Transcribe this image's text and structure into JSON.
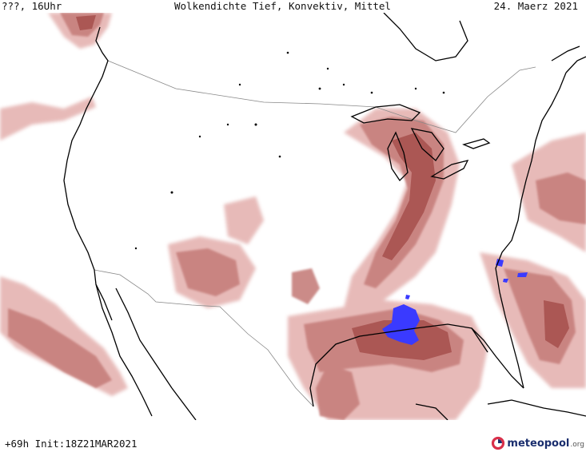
{
  "header": {
    "left": "???, 16Uhr",
    "center": "Wolkendichte  Tief, Konvektiv, Mittel",
    "right": "24. Maerz 2021"
  },
  "footer": {
    "run_info": "+69h Init:18Z21MAR2021",
    "logo_name": "meteopool",
    "logo_suffix": ".org"
  },
  "map": {
    "region": "Nordamerika / USA",
    "colors": {
      "low_cloud": "#e6b7b5",
      "mid_cloud": "#c67f7c",
      "high_cloud": "#a64f4c",
      "dense_cloud": "#8c3a38",
      "convective": "#3a3aff",
      "coastline": "#000000",
      "borders": "#888888",
      "background": "#ffffff"
    }
  }
}
